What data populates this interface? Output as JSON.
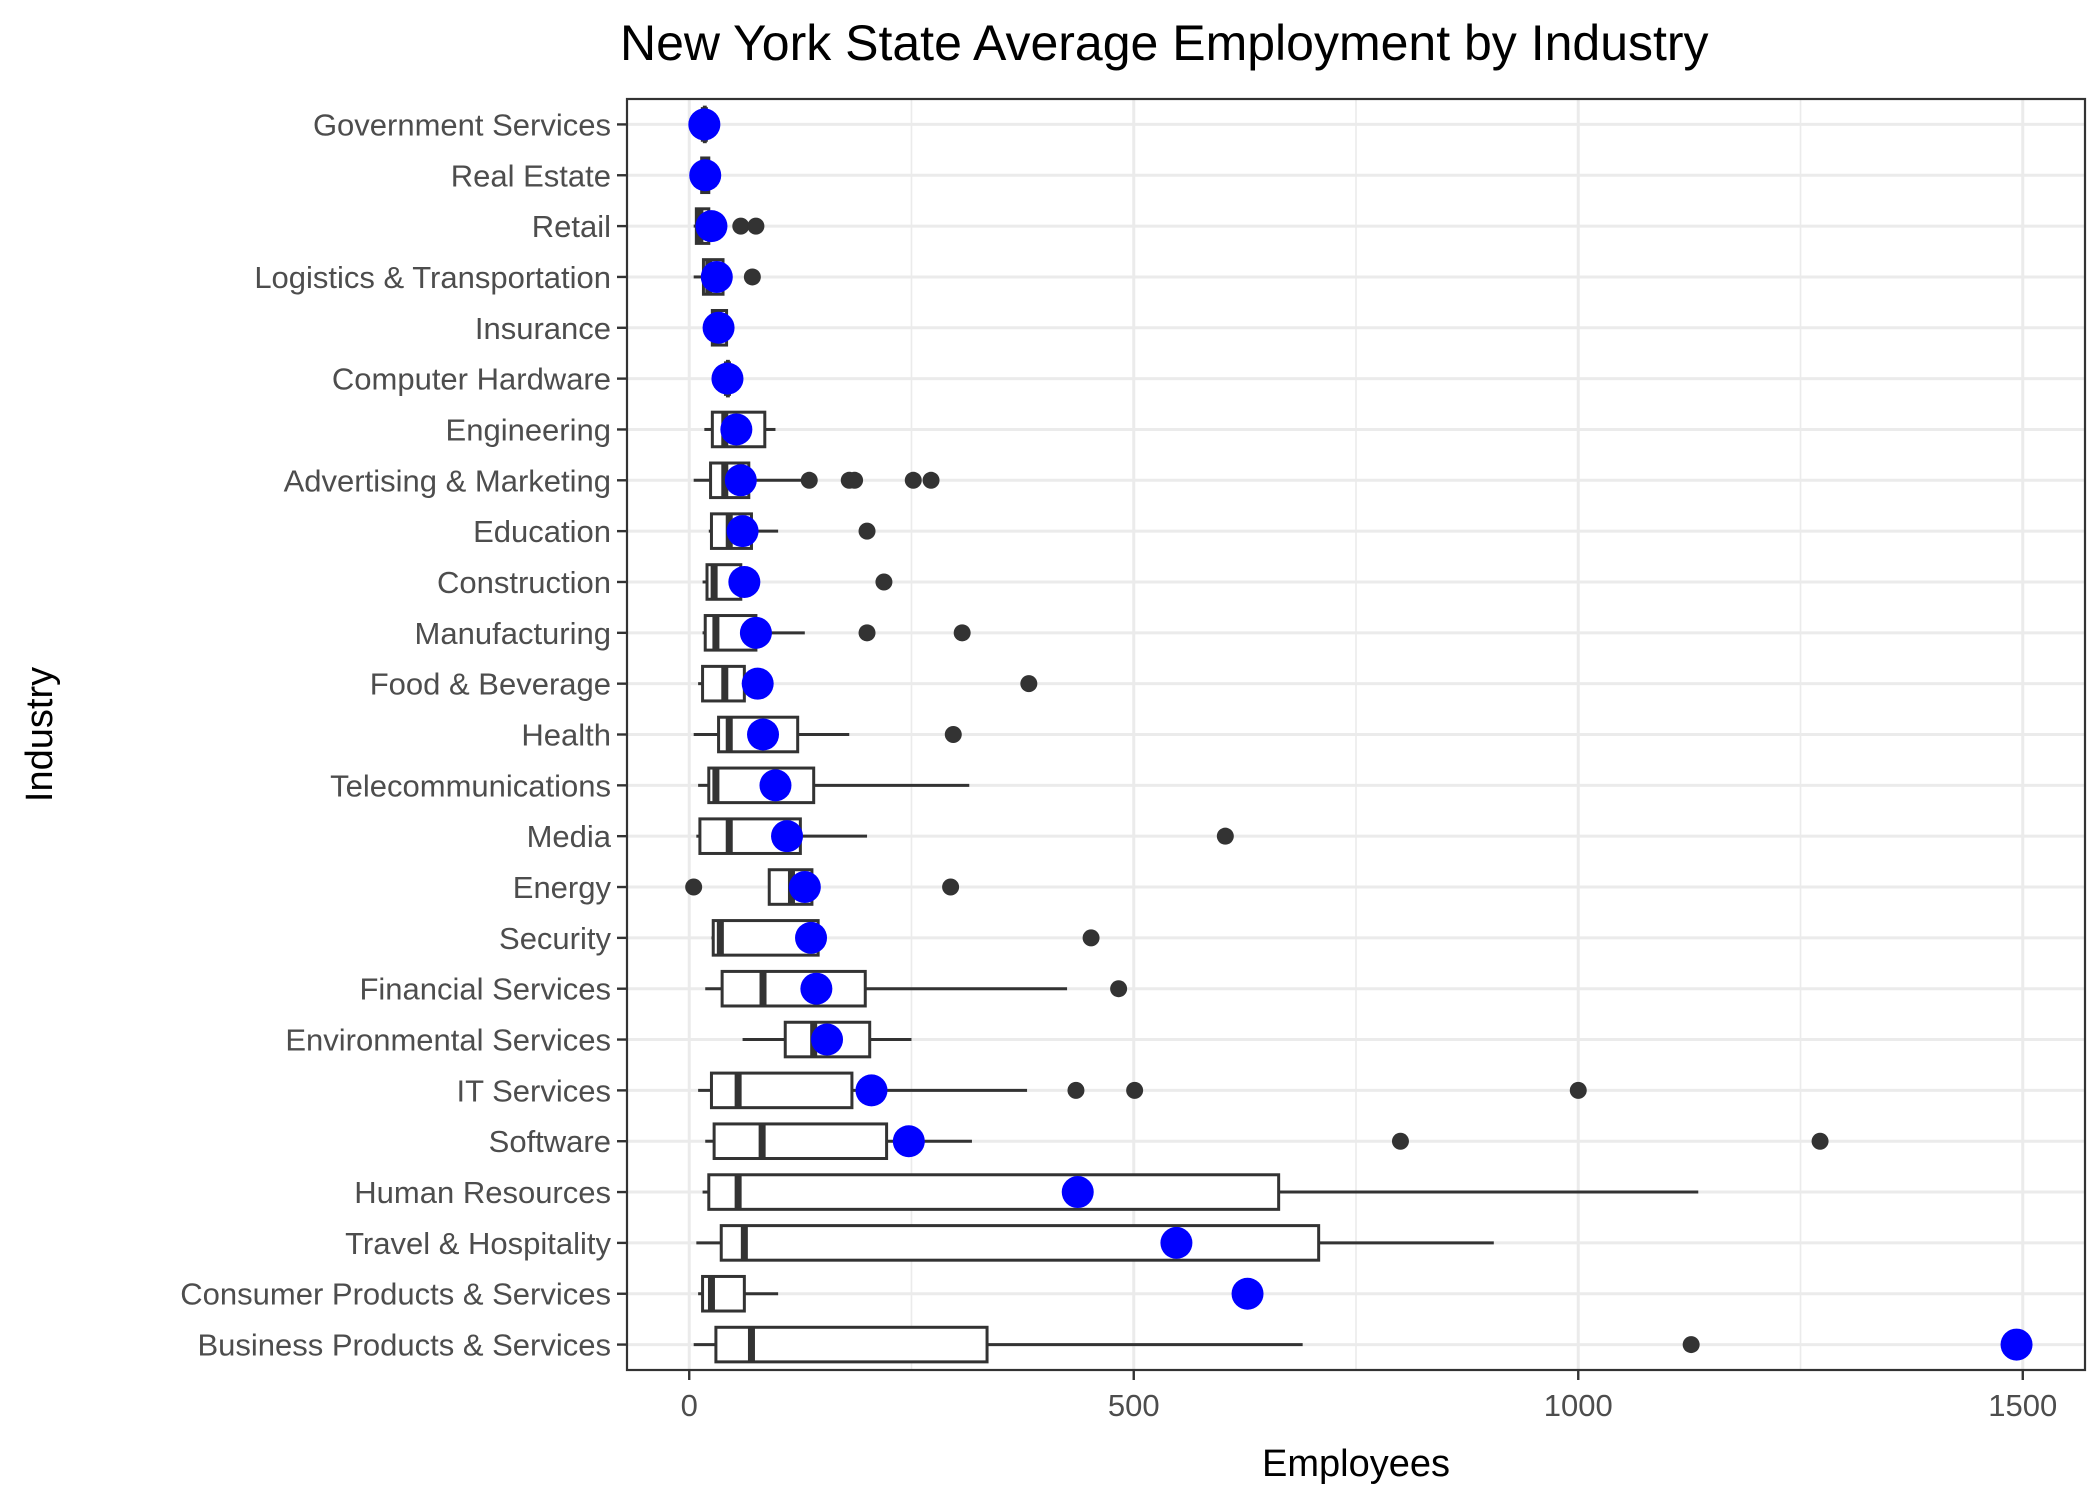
{
  "chart_data": {
    "type": "boxplot",
    "title": "New York State Average Employment by Industry",
    "xlabel": "Employees",
    "ylabel": "Industry",
    "xlim": [
      -70,
      1570
    ],
    "x_ticks": [
      0,
      500,
      1000,
      1500
    ],
    "x_tick_labels": [
      "0",
      "500",
      "1000",
      "1500"
    ],
    "grid": true,
    "mean_color": "#0000ff",
    "box_color": "#333333",
    "categories": [
      {
        "name": "Government Services",
        "min": 16,
        "q1": 17,
        "median": 17,
        "q3": 18,
        "max": 19,
        "outliers": [],
        "mean": 17
      },
      {
        "name": "Real Estate",
        "min": 13,
        "q1": 14,
        "median": 17,
        "q3": 22,
        "max": 24,
        "outliers": [],
        "mean": 18
      },
      {
        "name": "Retail",
        "min": 5,
        "q1": 8,
        "median": 12,
        "q3": 22,
        "max": 40,
        "outliers": [
          58,
          75
        ],
        "mean": 25
      },
      {
        "name": "Logistics & Transportation",
        "min": 5,
        "q1": 16,
        "median": 22,
        "q3": 38,
        "max": 45,
        "outliers": [
          71
        ],
        "mean": 31
      },
      {
        "name": "Insurance",
        "min": 25,
        "q1": 26,
        "median": 30,
        "q3": 42,
        "max": 44,
        "outliers": [],
        "mean": 33
      },
      {
        "name": "Computer Hardware",
        "min": 43,
        "q1": 43,
        "median": 43,
        "q3": 44,
        "max": 44,
        "outliers": [],
        "mean": 43
      },
      {
        "name": "Engineering",
        "min": 17,
        "q1": 26,
        "median": 40,
        "q3": 85,
        "max": 97,
        "outliers": [],
        "mean": 53
      },
      {
        "name": "Advertising & Marketing",
        "min": 5,
        "q1": 24,
        "median": 40,
        "q3": 67,
        "max": 130,
        "outliers": [
          135,
          180,
          186,
          252,
          272
        ],
        "mean": 58
      },
      {
        "name": "Education",
        "min": 22,
        "q1": 25,
        "median": 45,
        "q3": 70,
        "max": 100,
        "outliers": [
          200
        ],
        "mean": 60
      },
      {
        "name": "Construction",
        "min": 15,
        "q1": 20,
        "median": 28,
        "q3": 58,
        "max": 65,
        "outliers": [
          219
        ],
        "mean": 62
      },
      {
        "name": "Manufacturing",
        "min": 15,
        "q1": 18,
        "median": 30,
        "q3": 75,
        "max": 130,
        "outliers": [
          200,
          307
        ],
        "mean": 75
      },
      {
        "name": "Food & Beverage",
        "min": 10,
        "q1": 15,
        "median": 40,
        "q3": 62,
        "max": 70,
        "outliers": [
          382
        ],
        "mean": 77
      },
      {
        "name": "Health",
        "min": 5,
        "q1": 33,
        "median": 45,
        "q3": 122,
        "max": 180,
        "outliers": [
          297
        ],
        "mean": 83
      },
      {
        "name": "Telecommunications",
        "min": 10,
        "q1": 22,
        "median": 30,
        "q3": 140,
        "max": 315,
        "outliers": [],
        "mean": 97
      },
      {
        "name": "Media",
        "min": 8,
        "q1": 12,
        "median": 45,
        "q3": 125,
        "max": 200,
        "outliers": [
          603
        ],
        "mean": 110
      },
      {
        "name": "Energy",
        "min": 90,
        "q1": 90,
        "median": 115,
        "q3": 138,
        "max": 140,
        "outliers": [
          5,
          294
        ],
        "mean": 130
      },
      {
        "name": "Security",
        "min": 25,
        "q1": 27,
        "median": 35,
        "q3": 145,
        "max": 150,
        "outliers": [
          452
        ],
        "mean": 137
      },
      {
        "name": "Financial Services",
        "min": 18,
        "q1": 37,
        "median": 83,
        "q3": 198,
        "max": 425,
        "outliers": [
          483
        ],
        "mean": 143
      },
      {
        "name": "Environmental Services",
        "min": 60,
        "q1": 108,
        "median": 140,
        "q3": 203,
        "max": 250,
        "outliers": [],
        "mean": 155
      },
      {
        "name": "IT Services",
        "min": 10,
        "q1": 25,
        "median": 55,
        "q3": 183,
        "max": 380,
        "outliers": [
          435,
          501,
          1000
        ],
        "mean": 205
      },
      {
        "name": "Software",
        "min": 18,
        "q1": 28,
        "median": 82,
        "q3": 222,
        "max": 318,
        "outliers": [
          800,
          1272
        ],
        "mean": 247
      },
      {
        "name": "Human Resources",
        "min": 15,
        "q1": 22,
        "median": 55,
        "q3": 663,
        "max": 1135,
        "outliers": [],
        "mean": 437
      },
      {
        "name": "Travel & Hospitality",
        "min": 8,
        "q1": 36,
        "median": 62,
        "q3": 708,
        "max": 905,
        "outliers": [],
        "mean": 548
      },
      {
        "name": "Consumer Products & Services",
        "min": 10,
        "q1": 15,
        "median": 25,
        "q3": 62,
        "max": 100,
        "outliers": [],
        "mean": 628
      },
      {
        "name": "Business Products & Services",
        "min": 5,
        "q1": 30,
        "median": 70,
        "q3": 335,
        "max": 690,
        "outliers": [
          1127
        ],
        "mean": 1493
      }
    ]
  }
}
